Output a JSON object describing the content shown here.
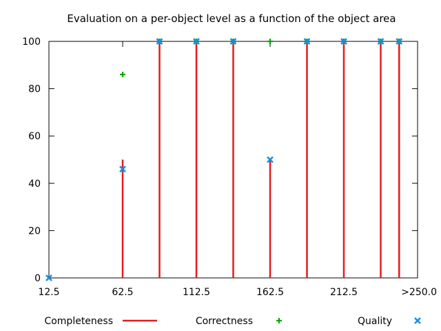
{
  "chart_data": {
    "type": "scatter",
    "title": "Evaluation on a per-object level as a function of the object area",
    "xlabel": "",
    "ylabel": "",
    "xlim": [
      12.5,
      262.5
    ],
    "ylim": [
      0,
      100
    ],
    "x_ticks": [
      {
        "value": 12.5,
        "label": "12.5"
      },
      {
        "value": 62.5,
        "label": "62.5"
      },
      {
        "value": 112.5,
        "label": "112.5"
      },
      {
        "value": 162.5,
        "label": "162.5"
      },
      {
        "value": 212.5,
        "label": "212.5"
      },
      {
        "value": 250,
        "label": ">250.0"
      }
    ],
    "y_ticks": [
      0,
      20,
      40,
      60,
      80,
      100
    ],
    "grid": false,
    "legend_position": "bottom",
    "series": [
      {
        "name": "Completeness",
        "style": "impulses",
        "color": "#e41a1c",
        "x": [
          12.5,
          62.5,
          87.5,
          112.5,
          137.5,
          162.5,
          187.5,
          212.5,
          237.5,
          250
        ],
        "values": [
          0,
          50,
          100,
          100,
          100,
          50,
          100,
          100,
          100,
          100
        ]
      },
      {
        "name": "Correctness",
        "style": "plus",
        "color": "#00aa00",
        "x": [
          62.5,
          87.5,
          112.5,
          137.5,
          162.5,
          187.5,
          212.5,
          237.5,
          250
        ],
        "values": [
          86,
          100,
          100,
          100,
          100,
          100,
          100,
          100,
          100
        ]
      },
      {
        "name": "Quality",
        "style": "cross",
        "color": "#1a8ee0",
        "x": [
          12.5,
          62.5,
          87.5,
          112.5,
          137.5,
          162.5,
          187.5,
          212.5,
          237.5,
          250
        ],
        "values": [
          0,
          46,
          100,
          100,
          100,
          50,
          100,
          100,
          100,
          100
        ]
      }
    ]
  }
}
